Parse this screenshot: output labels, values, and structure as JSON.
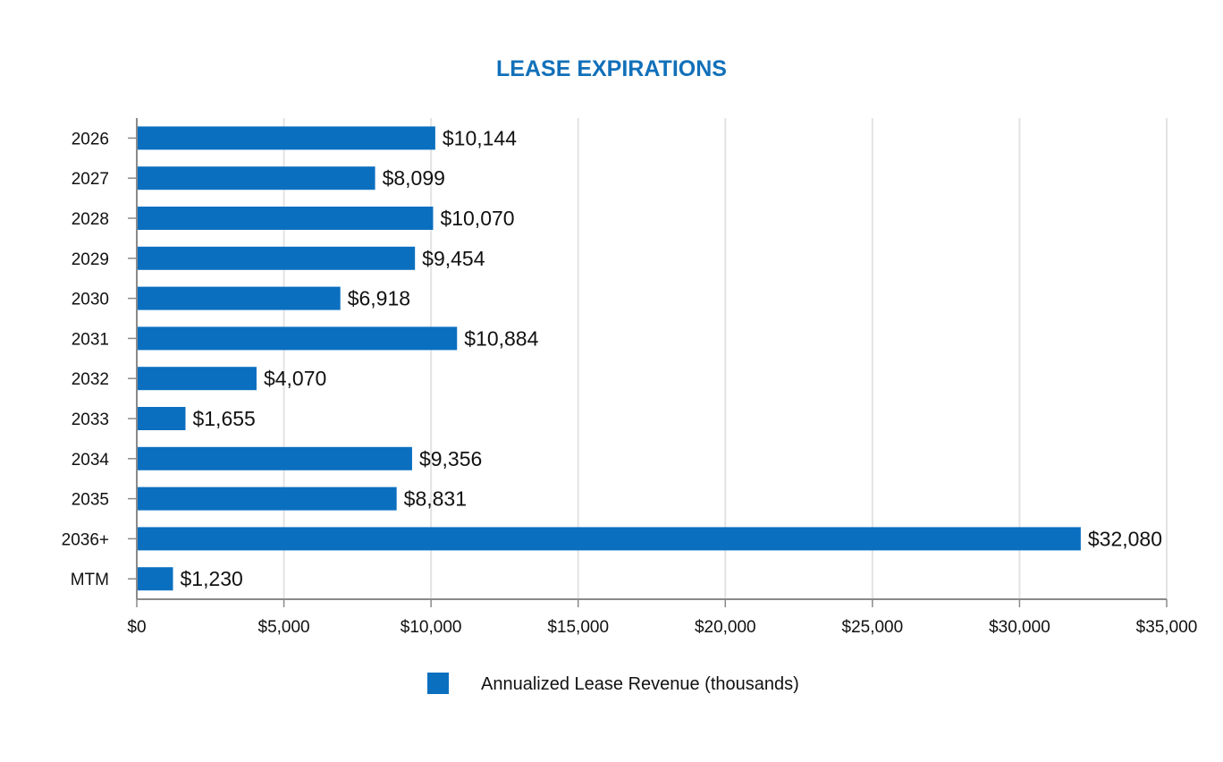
{
  "chart_data": {
    "type": "bar",
    "orientation": "horizontal",
    "title": "LEASE EXPIRATIONS",
    "categories": [
      "2026",
      "2027",
      "2028",
      "2029",
      "2030",
      "2031",
      "2032",
      "2033",
      "2034",
      "2035",
      "2036+",
      "MTM"
    ],
    "series": [
      {
        "name": "Annualized Lease Revenue (thousands)",
        "color": "#0b6fc0",
        "values": [
          10144,
          8099,
          10070,
          9454,
          6918,
          10884,
          4070,
          1655,
          9356,
          8831,
          32080,
          1230
        ],
        "labels": [
          "$10,144",
          "$8,099",
          "$10,070",
          "$9,454",
          "$6,918",
          "$10,884",
          "$4,070",
          "$1,655",
          "$9,356",
          "$8,831",
          "$32,080",
          "$1,230"
        ]
      }
    ],
    "xlim": [
      0,
      35000
    ],
    "xticks": [
      0,
      5000,
      10000,
      15000,
      20000,
      25000,
      30000,
      35000
    ],
    "xtick_labels": [
      "$0",
      "$5,000",
      "$10,000",
      "$15,000",
      "$20,000",
      "$25,000",
      "$30,000",
      "$35,000"
    ],
    "xlabel": "",
    "ylabel": "",
    "grid": true,
    "legend_position": "bottom-center"
  }
}
